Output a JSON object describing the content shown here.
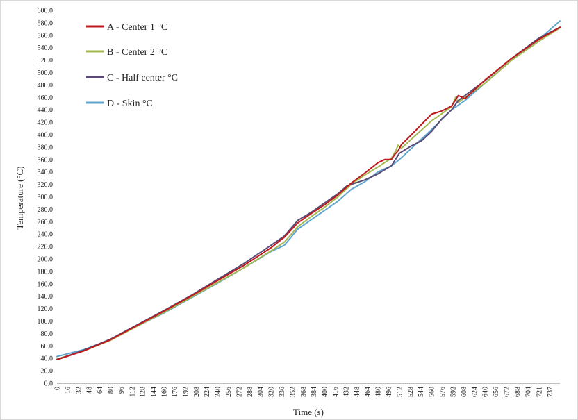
{
  "chart_data": {
    "type": "line",
    "title": "",
    "xlabel": "Time  (s)",
    "ylabel": "Temperature  (°C)",
    "xlim": [
      0,
      752
    ],
    "ylim": [
      0,
      600
    ],
    "grid": false,
    "legend_position": "top-left",
    "x_ticks": [
      "0",
      "16",
      "32",
      "48",
      "64",
      "80",
      "96",
      "112",
      "128",
      "144",
      "160",
      "176",
      "192",
      "208",
      "224",
      "240",
      "256",
      "272",
      "288",
      "304",
      "320",
      "336",
      "352",
      "368",
      "384",
      "400",
      "416",
      "432",
      "448",
      "464",
      "480",
      "496",
      "512",
      "528",
      "544",
      "560",
      "576",
      "592",
      "608",
      "624",
      "640",
      "656",
      "672",
      "688",
      "704",
      "721",
      "737"
    ],
    "y_ticks": [
      "0.0",
      "20.0",
      "40.0",
      "60.0",
      "80.0",
      "100.0",
      "120.0",
      "140.0",
      "160.0",
      "180.0",
      "200.0",
      "220.0",
      "240.0",
      "260.0",
      "280.0",
      "300.0",
      "320.0",
      "340.0",
      "360.0",
      "380.0",
      "400.0",
      "420.0",
      "440.0",
      "460.0",
      "480.0",
      "500.0",
      "520.0",
      "540.0",
      "560.0",
      "580.0",
      "600.0"
    ],
    "series": [
      {
        "name": "A - Center 1 °C",
        "color": "#c0181d",
        "x": [
          0,
          40,
          80,
          120,
          160,
          200,
          240,
          280,
          320,
          340,
          360,
          380,
          400,
          420,
          440,
          460,
          480,
          490,
          500,
          505,
          510,
          515,
          530,
          560,
          575,
          590,
          600,
          610,
          640,
          680,
          720,
          752
        ],
        "y": [
          38,
          52,
          70,
          93,
          116,
          140,
          165,
          190,
          218,
          235,
          258,
          273,
          287,
          303,
          322,
          338,
          355,
          360,
          360,
          368,
          374,
          384,
          400,
          433,
          438,
          446,
          463,
          458,
          488,
          523,
          553,
          573
        ]
      },
      {
        "name": "B - Center 2 °C",
        "color": "#a3b851",
        "x": [
          0,
          40,
          80,
          120,
          160,
          200,
          240,
          280,
          320,
          340,
          360,
          380,
          400,
          420,
          440,
          460,
          480,
          500,
          507,
          510,
          515,
          530,
          560,
          590,
          596,
          600,
          640,
          680,
          720,
          752
        ],
        "y": [
          39,
          52,
          69,
          92,
          114,
          138,
          162,
          186,
          213,
          227,
          252,
          268,
          283,
          300,
          320,
          335,
          348,
          362,
          375,
          383,
          378,
          393,
          422,
          445,
          460,
          452,
          483,
          520,
          550,
          572
        ]
      },
      {
        "name": "C - Half center °C",
        "color": "#5a4a74",
        "x": [
          0,
          40,
          80,
          120,
          160,
          200,
          240,
          280,
          320,
          340,
          360,
          380,
          400,
          420,
          434,
          440,
          460,
          480,
          500,
          512,
          530,
          545,
          560,
          575,
          590,
          600,
          640,
          680,
          720,
          752
        ],
        "y": [
          38,
          53,
          71,
          94,
          117,
          141,
          167,
          193,
          222,
          237,
          262,
          275,
          290,
          305,
          318,
          320,
          327,
          337,
          350,
          370,
          382,
          390,
          405,
          425,
          440,
          455,
          487,
          523,
          555,
          573
        ]
      },
      {
        "name": "D - Skin °C",
        "color": "#5fa4cf",
        "x": [
          0,
          40,
          80,
          120,
          160,
          200,
          240,
          280,
          320,
          340,
          360,
          380,
          400,
          420,
          440,
          460,
          480,
          500,
          512,
          530,
          560,
          590,
          610,
          640,
          680,
          720,
          752
        ],
        "y": [
          43,
          54,
          70,
          92,
          113,
          137,
          161,
          186,
          212,
          222,
          248,
          263,
          278,
          293,
          312,
          324,
          340,
          350,
          360,
          378,
          408,
          440,
          455,
          483,
          520,
          553,
          583
        ]
      }
    ]
  }
}
